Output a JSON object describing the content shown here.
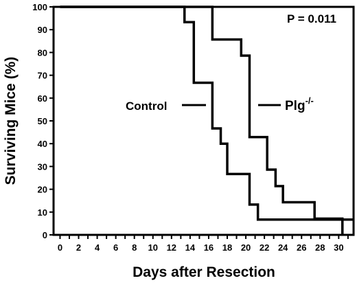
{
  "chart_data": {
    "type": "line",
    "step": true,
    "xlabel": "Days after Resection",
    "ylabel": "Surviving Mice (%)",
    "xlim": [
      -0.7,
      31.6
    ],
    "ylim": [
      0,
      100
    ],
    "xticks": [
      0,
      1,
      2,
      3,
      4,
      5,
      6,
      7,
      8,
      9,
      10,
      11,
      12,
      13,
      14,
      15,
      16,
      17,
      18,
      19,
      20,
      21,
      22,
      23,
      24,
      25,
      26,
      27,
      28,
      29,
      30,
      31
    ],
    "xtick_labels": [
      "0",
      "2",
      "4",
      "6",
      "8",
      "10",
      "12",
      "14",
      "16",
      "18",
      "20",
      "22",
      "24",
      "26",
      "28",
      "30"
    ],
    "xtick_label_values": [
      0,
      2,
      4,
      6,
      8,
      10,
      12,
      14,
      16,
      18,
      20,
      22,
      24,
      26,
      28,
      30
    ],
    "yticks": [
      0,
      10,
      20,
      30,
      40,
      50,
      60,
      70,
      80,
      90,
      100
    ],
    "ytick_labels": [
      "0",
      "10",
      "20",
      "30",
      "40",
      "50",
      "60",
      "70",
      "80",
      "90",
      "100"
    ],
    "annotations": [
      {
        "text": "P = 0.011"
      }
    ],
    "series": [
      {
        "name": "Control",
        "x": [
          0,
          13.4,
          14.4,
          16.4,
          17.3,
          18.0,
          18.7,
          20.4,
          21.3,
          31.6
        ],
        "y": [
          100,
          93.3,
          66.7,
          46.7,
          40,
          26.7,
          26.7,
          13.3,
          6.7,
          6.7
        ]
      },
      {
        "name": "Plg-/-",
        "x": [
          0,
          16.4,
          19.5,
          20.4,
          22.3,
          23.2,
          24.0,
          24.8,
          27.4,
          30.4
        ],
        "y": [
          100,
          85.7,
          78.6,
          42.9,
          28.6,
          21.4,
          14.3,
          14.3,
          7.1,
          0
        ]
      }
    ]
  }
}
